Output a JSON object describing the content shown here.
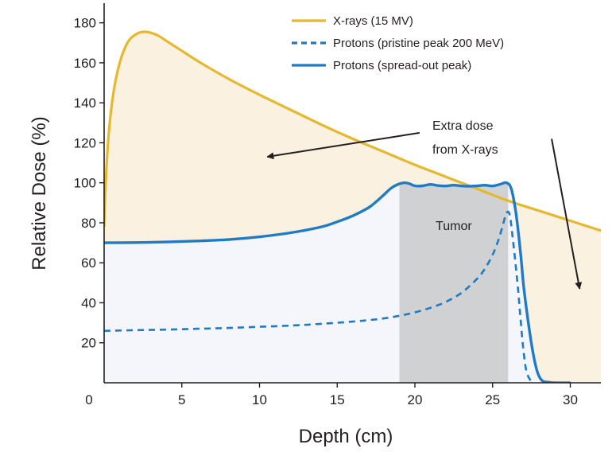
{
  "chart_data": {
    "type": "line",
    "xlabel": "Depth (cm)",
    "ylabel": "Relative Dose (%)",
    "xlim": [
      0,
      32
    ],
    "ylim": [
      0,
      190
    ],
    "xticks": [
      0,
      5,
      10,
      15,
      20,
      25,
      30
    ],
    "yticks": [
      20,
      40,
      60,
      80,
      100,
      120,
      140,
      160,
      180
    ],
    "grid": false,
    "legend_position": "top-right",
    "colors": {
      "xray": "#e6b82e",
      "proton": "#1e7bc4",
      "excess_fill": "#fbf1e0",
      "proton_fill": "#f4f6fb",
      "tumor": "#d0d1d3"
    },
    "series": [
      {
        "name": "X-rays (15 MV)",
        "style": "solid",
        "x": [
          0,
          0.1,
          0.3,
          0.6,
          1.0,
          1.5,
          2.0,
          2.5,
          3.0,
          3.5,
          4,
          5,
          6,
          8,
          10,
          12,
          14,
          16,
          18,
          20,
          22,
          24,
          26,
          28,
          30,
          32
        ],
        "y": [
          78,
          100,
          125,
          145,
          160,
          170,
          174,
          175.5,
          175,
          173.5,
          171,
          166,
          161,
          152,
          144,
          136.5,
          129,
          122,
          115.5,
          109,
          103,
          97,
          91,
          86,
          81,
          76
        ]
      },
      {
        "name": "Protons (pristine peak 200 MeV)",
        "style": "dashed",
        "x": [
          0,
          2,
          4,
          6,
          8,
          10,
          12,
          14,
          16,
          17,
          18,
          19,
          20,
          21,
          22,
          23,
          24,
          24.5,
          25,
          25.4,
          25.7,
          25.9,
          26.1,
          26.3,
          26.6,
          26.8,
          27.0,
          27.2,
          27.5
        ],
        "y": [
          26,
          26.3,
          26.6,
          27,
          27.4,
          28,
          28.6,
          29.5,
          30.6,
          31.3,
          32.2,
          33.5,
          35.2,
          37.5,
          40.5,
          45,
          52,
          57,
          64,
          72,
          80,
          85,
          84,
          72,
          50,
          32,
          15,
          5,
          0.5
        ]
      },
      {
        "name": "Protons (spread-out peak)",
        "style": "solid",
        "x": [
          0,
          2,
          4,
          6,
          8,
          10,
          12,
          14,
          15,
          16,
          17,
          17.5,
          18,
          18.5,
          19,
          19.3,
          19.6,
          20,
          20.5,
          21,
          21.5,
          22,
          22.5,
          23,
          23.5,
          24,
          24.5,
          25,
          25.5,
          25.9,
          26.2,
          26.5,
          26.8,
          27.0,
          27.3,
          27.6,
          27.9,
          28.2,
          28.6,
          29,
          30
        ],
        "y": [
          70,
          70.1,
          70.4,
          70.9,
          71.6,
          73,
          75,
          78,
          80.5,
          83.5,
          87.5,
          90.5,
          94,
          97.5,
          99.5,
          100,
          99.7,
          98.5,
          98.5,
          99.2,
          98.6,
          98.4,
          98.8,
          98.4,
          98.3,
          98.5,
          98.8,
          98.4,
          99.3,
          100,
          97,
          85,
          65,
          48,
          30,
          15,
          5,
          1,
          0.3,
          0,
          0
        ]
      }
    ],
    "tumor": {
      "x_start": 19,
      "x_end": 26,
      "label": "Tumor"
    },
    "annotation": {
      "lines": [
        "Extra dose",
        "from X-rays"
      ],
      "arrows": [
        {
          "from": [
            20.3,
            125
          ],
          "to": [
            10.5,
            113
          ]
        },
        {
          "from": [
            28.8,
            122
          ],
          "to": [
            30.6,
            47
          ]
        }
      ]
    }
  }
}
